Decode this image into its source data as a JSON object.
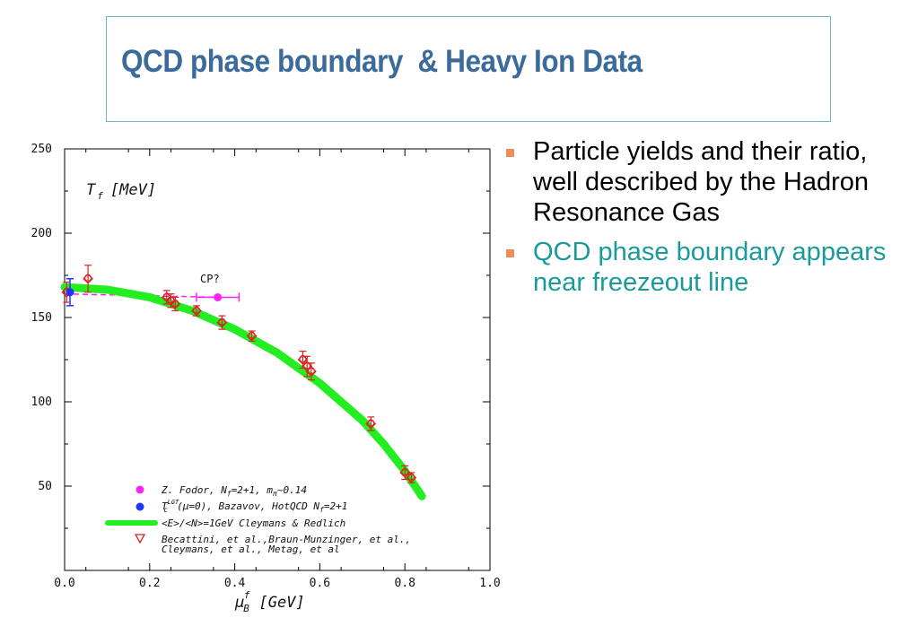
{
  "title": "QCD phase boundary  & Heavy Ion Data",
  "bullets": [
    {
      "text": "Particle yields and their ratio, well described by the Hadron Resonance Gas",
      "color": "#000000"
    },
    {
      "text": "QCD phase boundary appears near freezeout line",
      "color": "#1a9a9a"
    }
  ],
  "colors": {
    "bullet_marker": "#f08c5a",
    "title": "#3a6b9b",
    "freezeout_curve": "#22ee22",
    "fodor": "#ff22ff",
    "bazavov": "#2233ff",
    "becattini": "#dd2222"
  },
  "chart_data": {
    "type": "scatter",
    "ylabel_main": "T",
    "ylabel_sub": "f",
    "ylabel_unit": "[MeV]",
    "xlabel_main": "μ",
    "xlabel_sub": "B",
    "xlabel_sup": "f",
    "xlabel_unit": "[GeV]",
    "xlim": [
      0.0,
      1.0
    ],
    "ylim": [
      0,
      250
    ],
    "x_ticks": [
      "0.0",
      "0.2",
      "0.4",
      "0.6",
      "0.8",
      "1.0"
    ],
    "y_ticks": [
      "50",
      "100",
      "150",
      "200",
      "250"
    ],
    "annotation": "CP?",
    "series": [
      {
        "name": "Z. Fodor, N_f=2+1, m_π~0.14",
        "legend": {
          "pre": "Z. Fodor, N",
          "sub1": "f",
          "mid": "=2+1, m",
          "sub2": "π",
          "post": "~0.14"
        },
        "marker": "dot",
        "x": [
          0.36
        ],
        "y": [
          162
        ],
        "xerr": [
          0.05
        ],
        "dashed_to_x": 0.0,
        "dashed_y": 164
      },
      {
        "name": "T_c^LGT(μ=0), Bazavov, HotQCD N_f=2+1",
        "legend": {
          "pre": "T",
          "sub1": "c",
          "sup1": "LGT",
          "mid": "(μ=0), Bazavov, HotQCD  N",
          "sub2": "f",
          "post": "=2+1"
        },
        "marker": "dot",
        "x": [
          0.0
        ],
        "y": [
          165
        ],
        "yerr": [
          8
        ]
      },
      {
        "name": "<E>/<N>=1GeV Cleymans & Redlich",
        "legend": {
          "pre": "<E>/<N>=1GeV Cleymans & Redlich"
        },
        "type": "line",
        "x": [
          0.0,
          0.1,
          0.2,
          0.3,
          0.4,
          0.5,
          0.6,
          0.7,
          0.75,
          0.8,
          0.84
        ],
        "y": [
          168,
          166.5,
          162,
          154,
          143,
          129,
          111,
          89,
          75,
          59,
          44
        ]
      },
      {
        "name": "Becattini, et al.,Braun-Munzinger, et al., Cleymans, et al., Metag, et al",
        "legend": {
          "line1": "Becattini, et al.,Braun-Munzinger, et al.,",
          "line2": "Cleymans, et al., Metag, et al"
        },
        "marker": "triangle-down+diamond",
        "x": [
          0.005,
          0.055,
          0.24,
          0.25,
          0.26,
          0.31,
          0.37,
          0.44,
          0.56,
          0.57,
          0.58,
          0.72,
          0.8,
          0.815
        ],
        "y": [
          165,
          173,
          162,
          160,
          158,
          154,
          147,
          139,
          125,
          121,
          118,
          87,
          58,
          55
        ],
        "yerr": [
          6,
          8,
          4,
          4,
          4,
          3,
          4,
          3,
          5,
          6,
          5,
          4,
          4,
          3
        ]
      }
    ]
  }
}
